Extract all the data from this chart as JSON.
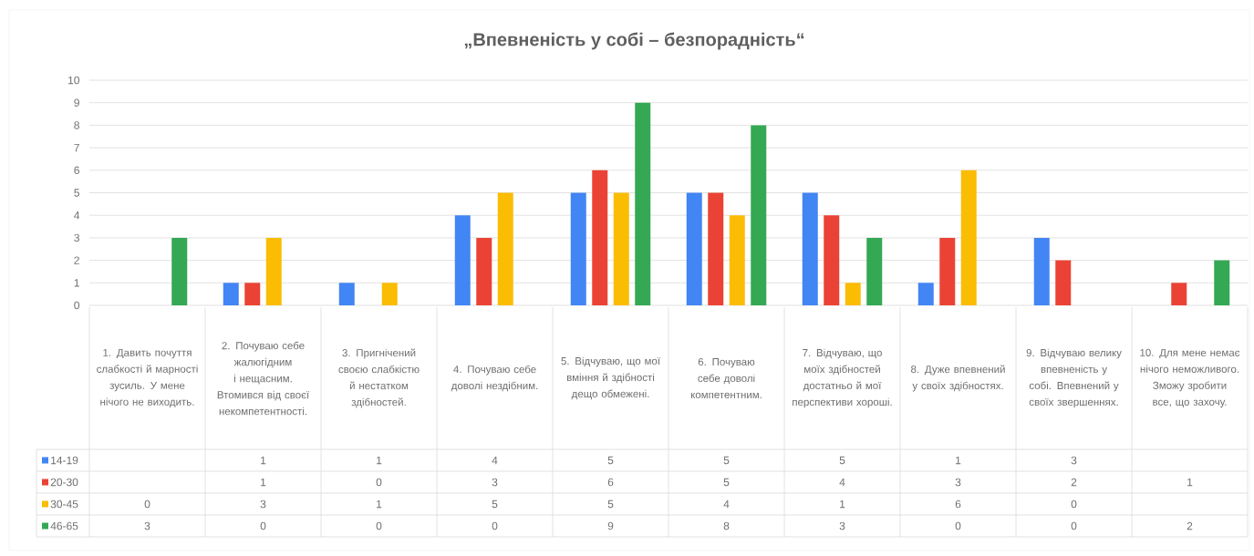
{
  "chart_data": {
    "type": "bar",
    "title": "„Впевненість у собі – безпорадність“",
    "categories": [
      "1. Давить почуття слабкості й марності зусиль. У мене нічого не виходить.",
      "2. Почуваю себе жалюгідним і нещасним. Втомився від своєї некомпетентності.",
      "3. Пригнічений своєю слабкістю й нестатком здібностей.",
      "4. Почуваю себе доволі нездібним.",
      "5. Відчуваю, що мої вміння й здібності дещо обмежені.",
      "6. Почуваю себе доволі компетентним.",
      "7. Відчуваю, що моїх здібностей достатньо й мої перспективи хороші.",
      "8. Дуже впевнений у своїх здібностях.",
      "9. Відчуваю велику впевненість у собі. Впевнений у своїх звершеннях.",
      "10. Для мене немає нічого неможливого. Зможу зробити все, що захочу."
    ],
    "series": [
      {
        "name": "14-19",
        "color": "#4285f4",
        "values": [
          null,
          1,
          1,
          4,
          5,
          5,
          5,
          1,
          3,
          null
        ]
      },
      {
        "name": "20-30",
        "color": "#ea4335",
        "values": [
          null,
          1,
          0,
          3,
          6,
          5,
          4,
          3,
          2,
          1
        ]
      },
      {
        "name": "30-45",
        "color": "#fbbc04",
        "values": [
          0,
          3,
          1,
          5,
          5,
          4,
          1,
          6,
          0,
          null
        ]
      },
      {
        "name": "46-65",
        "color": "#34a853",
        "values": [
          3,
          0,
          0,
          0,
          9,
          8,
          3,
          0,
          0,
          2
        ]
      }
    ],
    "ylim": [
      0,
      10
    ],
    "yticks": [
      0,
      1,
      2,
      3,
      4,
      5,
      6,
      7,
      8,
      9,
      10
    ],
    "grid": "y",
    "legend": "bottom left",
    "data_labels": true
  }
}
